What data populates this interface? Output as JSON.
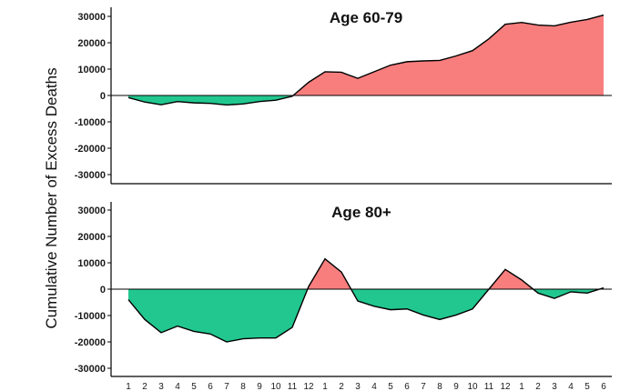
{
  "ylabel": "Cumulative Number of Excess Deaths",
  "colors": {
    "positive": "#f87e7e",
    "negative": "#21c78f",
    "line": "#000000",
    "axis": "#000000"
  },
  "x_tick_labels": [
    "1",
    "2",
    "3",
    "4",
    "5",
    "6",
    "7",
    "8",
    "9",
    "10",
    "11",
    "12",
    "1",
    "2",
    "3",
    "4",
    "5",
    "6",
    "7",
    "8",
    "9",
    "10",
    "11",
    "12",
    "1",
    "2",
    "3",
    "4",
    "5",
    "6"
  ],
  "chart_data": [
    {
      "type": "area",
      "title": "Age 60-79",
      "ylim": [
        -32000,
        32000
      ],
      "yticks": [
        -30000,
        -20000,
        -10000,
        0,
        10000,
        20000,
        30000
      ],
      "x": [
        1,
        2,
        3,
        4,
        5,
        6,
        7,
        8,
        9,
        10,
        11,
        12,
        13,
        14,
        15,
        16,
        17,
        18,
        19,
        20,
        21,
        22,
        23,
        24,
        25,
        26,
        27,
        28,
        29,
        30
      ],
      "values": [
        -800,
        -2500,
        -3500,
        -2300,
        -2800,
        -3000,
        -3600,
        -3200,
        -2300,
        -1800,
        -300,
        5000,
        9000,
        8800,
        6500,
        9000,
        11500,
        12800,
        13100,
        13300,
        15000,
        17000,
        21500,
        27000,
        27700,
        26700,
        26400,
        27800,
        28800,
        30500
      ]
    },
    {
      "type": "area",
      "title": "Age 80+",
      "ylim": [
        -32000,
        32000
      ],
      "yticks": [
        -30000,
        -20000,
        -10000,
        0,
        10000,
        20000,
        30000
      ],
      "x": [
        1,
        2,
        3,
        4,
        5,
        6,
        7,
        8,
        9,
        10,
        11,
        12,
        13,
        14,
        15,
        16,
        17,
        18,
        19,
        20,
        21,
        22,
        23,
        24,
        25,
        26,
        27,
        28,
        29,
        30
      ],
      "values": [
        -4000,
        -11500,
        -16500,
        -14000,
        -16000,
        -17000,
        -20000,
        -18800,
        -18500,
        -18500,
        -14500,
        1000,
        11500,
        6500,
        -4500,
        -6500,
        -7800,
        -7500,
        -9800,
        -11500,
        -9800,
        -7500,
        0,
        7500,
        3500,
        -1500,
        -3500,
        -1000,
        -1500,
        500
      ]
    }
  ]
}
